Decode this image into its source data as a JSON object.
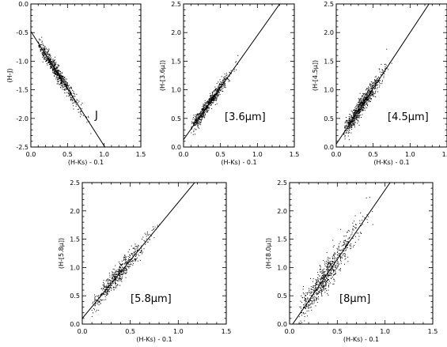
{
  "chart_data": [
    {
      "type": "scatter",
      "panel_label": "J",
      "xlabel": "(H-Ks) - 0.1",
      "ylabel": "(H-J)",
      "xlim": [
        0.0,
        1.5
      ],
      "ylim": [
        -2.5,
        0.0
      ],
      "xticks": [
        "0.0",
        "0.5",
        "1.0",
        "1.5"
      ],
      "yticks": [
        "-2.5",
        "-2.0",
        "-1.5",
        "-1.0",
        "-0.5",
        "0.0"
      ],
      "fit_line": {
        "slope": -2.0,
        "intercept": -0.48
      },
      "scatter": {
        "x_center": 0.35,
        "x_spread": 0.16,
        "x_min": 0.1,
        "x_max": 0.82,
        "y_scatter": 0.07,
        "n_points": 650
      }
    },
    {
      "type": "scatter",
      "panel_label": "[3.6μm]",
      "xlabel": "(H-Ks) - 0.1",
      "ylabel": "(H-[3.6μ])",
      "xlim": [
        0.0,
        1.5
      ],
      "ylim": [
        0.0,
        2.5
      ],
      "xticks": [
        "0.0",
        "0.5",
        "1.0",
        "1.5"
      ],
      "yticks": [
        "0.0",
        "0.5",
        "1.0",
        "1.5",
        "2.0",
        "2.5"
      ],
      "fit_line": {
        "slope": 1.82,
        "intercept": 0.13
      },
      "scatter": {
        "x_center": 0.33,
        "x_spread": 0.15,
        "x_min": 0.1,
        "x_max": 0.75,
        "y_scatter": 0.06,
        "n_points": 650
      }
    },
    {
      "type": "scatter",
      "panel_label": "[4.5μm]",
      "xlabel": "(H-Ks) - 0.1",
      "ylabel": "(H-[4.5μ])",
      "xlim": [
        0.0,
        1.5
      ],
      "ylim": [
        0.0,
        2.5
      ],
      "xticks": [
        "0.0",
        "0.5",
        "1.0",
        "1.5"
      ],
      "yticks": [
        "0.0",
        "0.5",
        "1.0",
        "1.5",
        "2.0",
        "2.5"
      ],
      "fit_line": {
        "slope": 1.95,
        "intercept": 0.05
      },
      "scatter": {
        "x_center": 0.33,
        "x_spread": 0.15,
        "x_min": 0.1,
        "x_max": 0.8,
        "y_scatter": 0.08,
        "n_points": 800
      }
    },
    {
      "type": "scatter",
      "panel_label": "[5.8μm]",
      "xlabel": "(H-Ks) - 0.1",
      "ylabel": "(H-[5.8μ])",
      "xlim": [
        0.0,
        1.5
      ],
      "ylim": [
        0.0,
        2.5
      ],
      "xticks": [
        "0.0",
        "0.5",
        "1.0",
        "1.5"
      ],
      "yticks": [
        "0.0",
        "0.5",
        "1.0",
        "1.5",
        "2.0",
        "2.5"
      ],
      "fit_line": {
        "slope": 2.05,
        "intercept": 0.1
      },
      "scatter": {
        "x_center": 0.36,
        "x_spread": 0.16,
        "x_min": 0.1,
        "x_max": 0.85,
        "y_scatter": 0.09,
        "n_points": 550
      }
    },
    {
      "type": "scatter",
      "panel_label": "[8μm]",
      "xlabel": "(H-Ks) - 0.1",
      "ylabel": "(H-[8.0μ])",
      "xlim": [
        0.0,
        1.5
      ],
      "ylim": [
        0.0,
        2.5
      ],
      "xticks": [
        "0.0",
        "0.5",
        "1.0",
        "1.5"
      ],
      "yticks": [
        "0.0",
        "0.5",
        "1.0",
        "1.5",
        "2.0",
        "2.5"
      ],
      "fit_line": {
        "slope": 2.45,
        "intercept": -0.08
      },
      "scatter": {
        "x_center": 0.37,
        "x_spread": 0.17,
        "x_min": 0.1,
        "x_max": 0.9,
        "y_scatter": 0.14,
        "n_points": 700
      }
    }
  ]
}
